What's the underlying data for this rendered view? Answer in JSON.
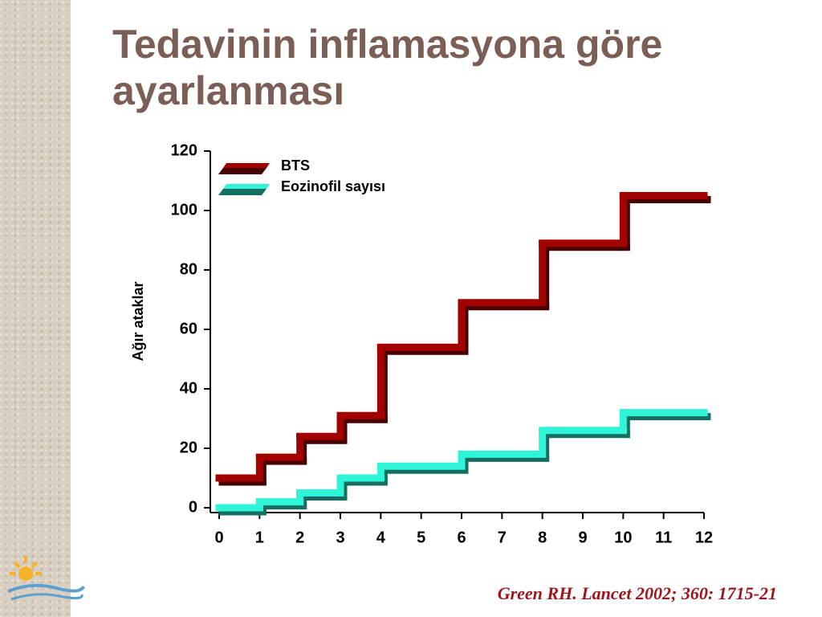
{
  "chart_data": {
    "type": "step",
    "title": "Tedavinin inflamasyona göre ayarlanması",
    "y_label": "Ağır ataklar",
    "source": "Green RH. Lancet 2002; 360: 1715-21",
    "x": [
      0,
      1,
      2,
      3,
      4,
      6,
      8,
      10
    ],
    "series": [
      {
        "name": "BTS",
        "color": "#a30000",
        "values": [
          10,
          17,
          24,
          31,
          54,
          69,
          89,
          105
        ]
      },
      {
        "name": "Eozinofil sayısı",
        "color": "#2ef5d8",
        "values": [
          0,
          2,
          5,
          10,
          14,
          18,
          26,
          32
        ]
      }
    ],
    "xlim": [
      0,
      12
    ],
    "xticks": [
      0,
      1,
      2,
      3,
      4,
      5,
      6,
      7,
      8,
      9,
      10,
      11,
      12
    ],
    "ylim": [
      0,
      120
    ],
    "yticks": [
      0,
      20,
      40,
      60,
      80,
      100,
      120
    ]
  }
}
